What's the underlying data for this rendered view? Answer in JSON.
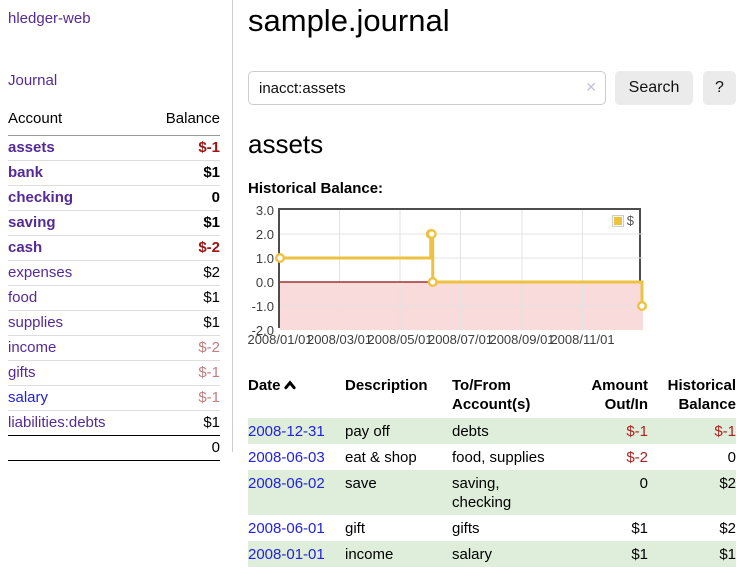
{
  "app": {
    "title": "hledger-web",
    "nav_journal": "Journal"
  },
  "sidebar": {
    "headers": {
      "account": "Account",
      "balance": "Balance"
    },
    "rows": [
      {
        "account": "assets",
        "balance": "$-1"
      },
      {
        "account": "bank",
        "balance": "$1"
      },
      {
        "account": "checking",
        "balance": "0"
      },
      {
        "account": "saving",
        "balance": "$1"
      },
      {
        "account": "cash",
        "balance": "$-2"
      },
      {
        "account": "expenses",
        "balance": "$2"
      },
      {
        "account": "food",
        "balance": "$1"
      },
      {
        "account": "supplies",
        "balance": "$1"
      },
      {
        "account": "income",
        "balance": "$-2"
      },
      {
        "account": "gifts",
        "balance": "$-1"
      },
      {
        "account": "salary",
        "balance": "$-1"
      },
      {
        "account": "liabilities:debts",
        "balance": "$1"
      }
    ],
    "total": "0"
  },
  "main": {
    "title": "sample.journal",
    "search": {
      "value": "inacct:assets",
      "clear_icon": "✕",
      "search_label": "Search",
      "help_label": "?"
    },
    "account_heading": "assets",
    "section_label": "Historical Balance:"
  },
  "chart_data": {
    "type": "line",
    "step": true,
    "title": "Historical Balance",
    "series": [
      {
        "name": "$",
        "color": "#edc240",
        "points": [
          [
            "2008-01-01",
            1
          ],
          [
            "2008-06-01",
            2
          ],
          [
            "2008-06-02",
            2
          ],
          [
            "2008-06-03",
            0
          ],
          [
            "2008-12-31",
            -1
          ]
        ]
      }
    ],
    "x_ticks": [
      "2008/01/01",
      "2008/03/01",
      "2008/05/01",
      "2008/07/01",
      "2008/09/01",
      "2008/11/01"
    ],
    "y_ticks": [
      3.0,
      2.0,
      1.0,
      0.0,
      -1.0,
      -2.0
    ],
    "xlim": [
      "2008-01-01",
      "2009-01-01"
    ],
    "ylim": [
      -2,
      3
    ],
    "grid": true,
    "legend_position": "top-right",
    "legend": {
      "label": "$"
    },
    "colors": {
      "negative_region": "#f9dbdb",
      "zero_line": "#8f0d0d",
      "gridline": "#e3e3e3",
      "border": "#4d4d4d"
    }
  },
  "register": {
    "headers": {
      "date": "Date",
      "description": "Description",
      "accounts": "To/From Account(s)",
      "amount": "Amount Out/In",
      "balance": "Historical Balance"
    },
    "rows": [
      {
        "date": "2008-12-31",
        "description": "pay off",
        "accounts": "debts",
        "amount": "$-1",
        "balance": "$-1"
      },
      {
        "date": "2008-06-03",
        "description": "eat & shop",
        "accounts": "food, supplies",
        "amount": "$-2",
        "balance": "0"
      },
      {
        "date": "2008-06-02",
        "description": "save",
        "accounts": "saving, checking",
        "amount": "0",
        "balance": "$2"
      },
      {
        "date": "2008-06-01",
        "description": "gift",
        "accounts": "gifts",
        "amount": "$1",
        "balance": "$2"
      },
      {
        "date": "2008-01-01",
        "description": "income",
        "accounts": "salary",
        "amount": "$1",
        "balance": "$1"
      }
    ]
  }
}
